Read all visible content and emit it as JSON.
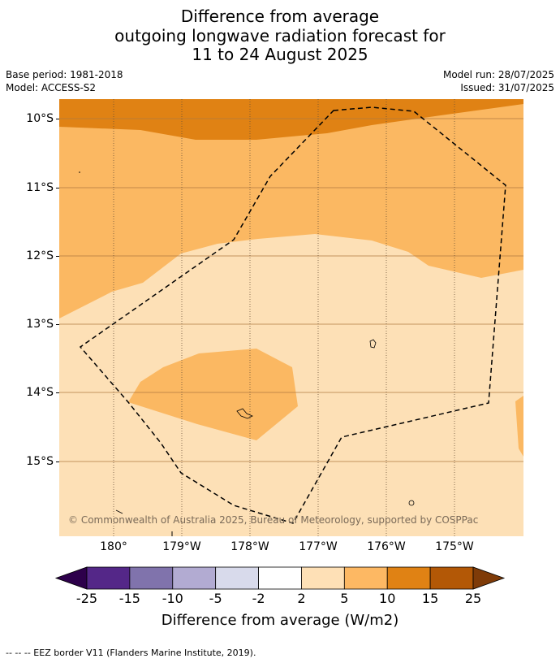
{
  "title": {
    "line1": "Difference from average",
    "line2": "outgoing longwave radiation forecast for",
    "line3": "11 to 24 August 2025"
  },
  "meta": {
    "base_period": "Base period: 1981-2018",
    "model": "Model: ACCESS-S2",
    "model_run": "Model run: 28/07/2025",
    "issued": "Issued: 31/07/2025"
  },
  "map": {
    "lat_labels": [
      "10°S",
      "11°S",
      "12°S",
      "13°S",
      "14°S",
      "15°S"
    ],
    "lon_labels": [
      "180°",
      "179°W",
      "178°W",
      "177°W",
      "176°W",
      "175°W"
    ],
    "copyright": "© Commonwealth of Australia 2025, Bureau of Meteorology, supported by COSPPac",
    "colors": {
      "band_2_5": "#fde0b6",
      "band_5_10": "#fbb862",
      "band_10_15": "#e08214",
      "band_15_25": "#b35806",
      "band_gt25": "#7f3b08"
    }
  },
  "colorbar": {
    "ticks": [
      "-25",
      "-15",
      "-10",
      "-5",
      "-2",
      "2",
      "5",
      "10",
      "15",
      "25"
    ],
    "colors": [
      "#2d004b",
      "#542788",
      "#8073ac",
      "#b2abd2",
      "#d8daeb",
      "#ffffff",
      "#fee0b6",
      "#fdb863",
      "#e08214",
      "#b35806",
      "#7f3b08"
    ],
    "label": "Difference from average (W/m2)"
  },
  "footer": {
    "legend_line": "--  --  -- EEZ border V11 (Flanders Marine Institute, 2019)."
  }
}
